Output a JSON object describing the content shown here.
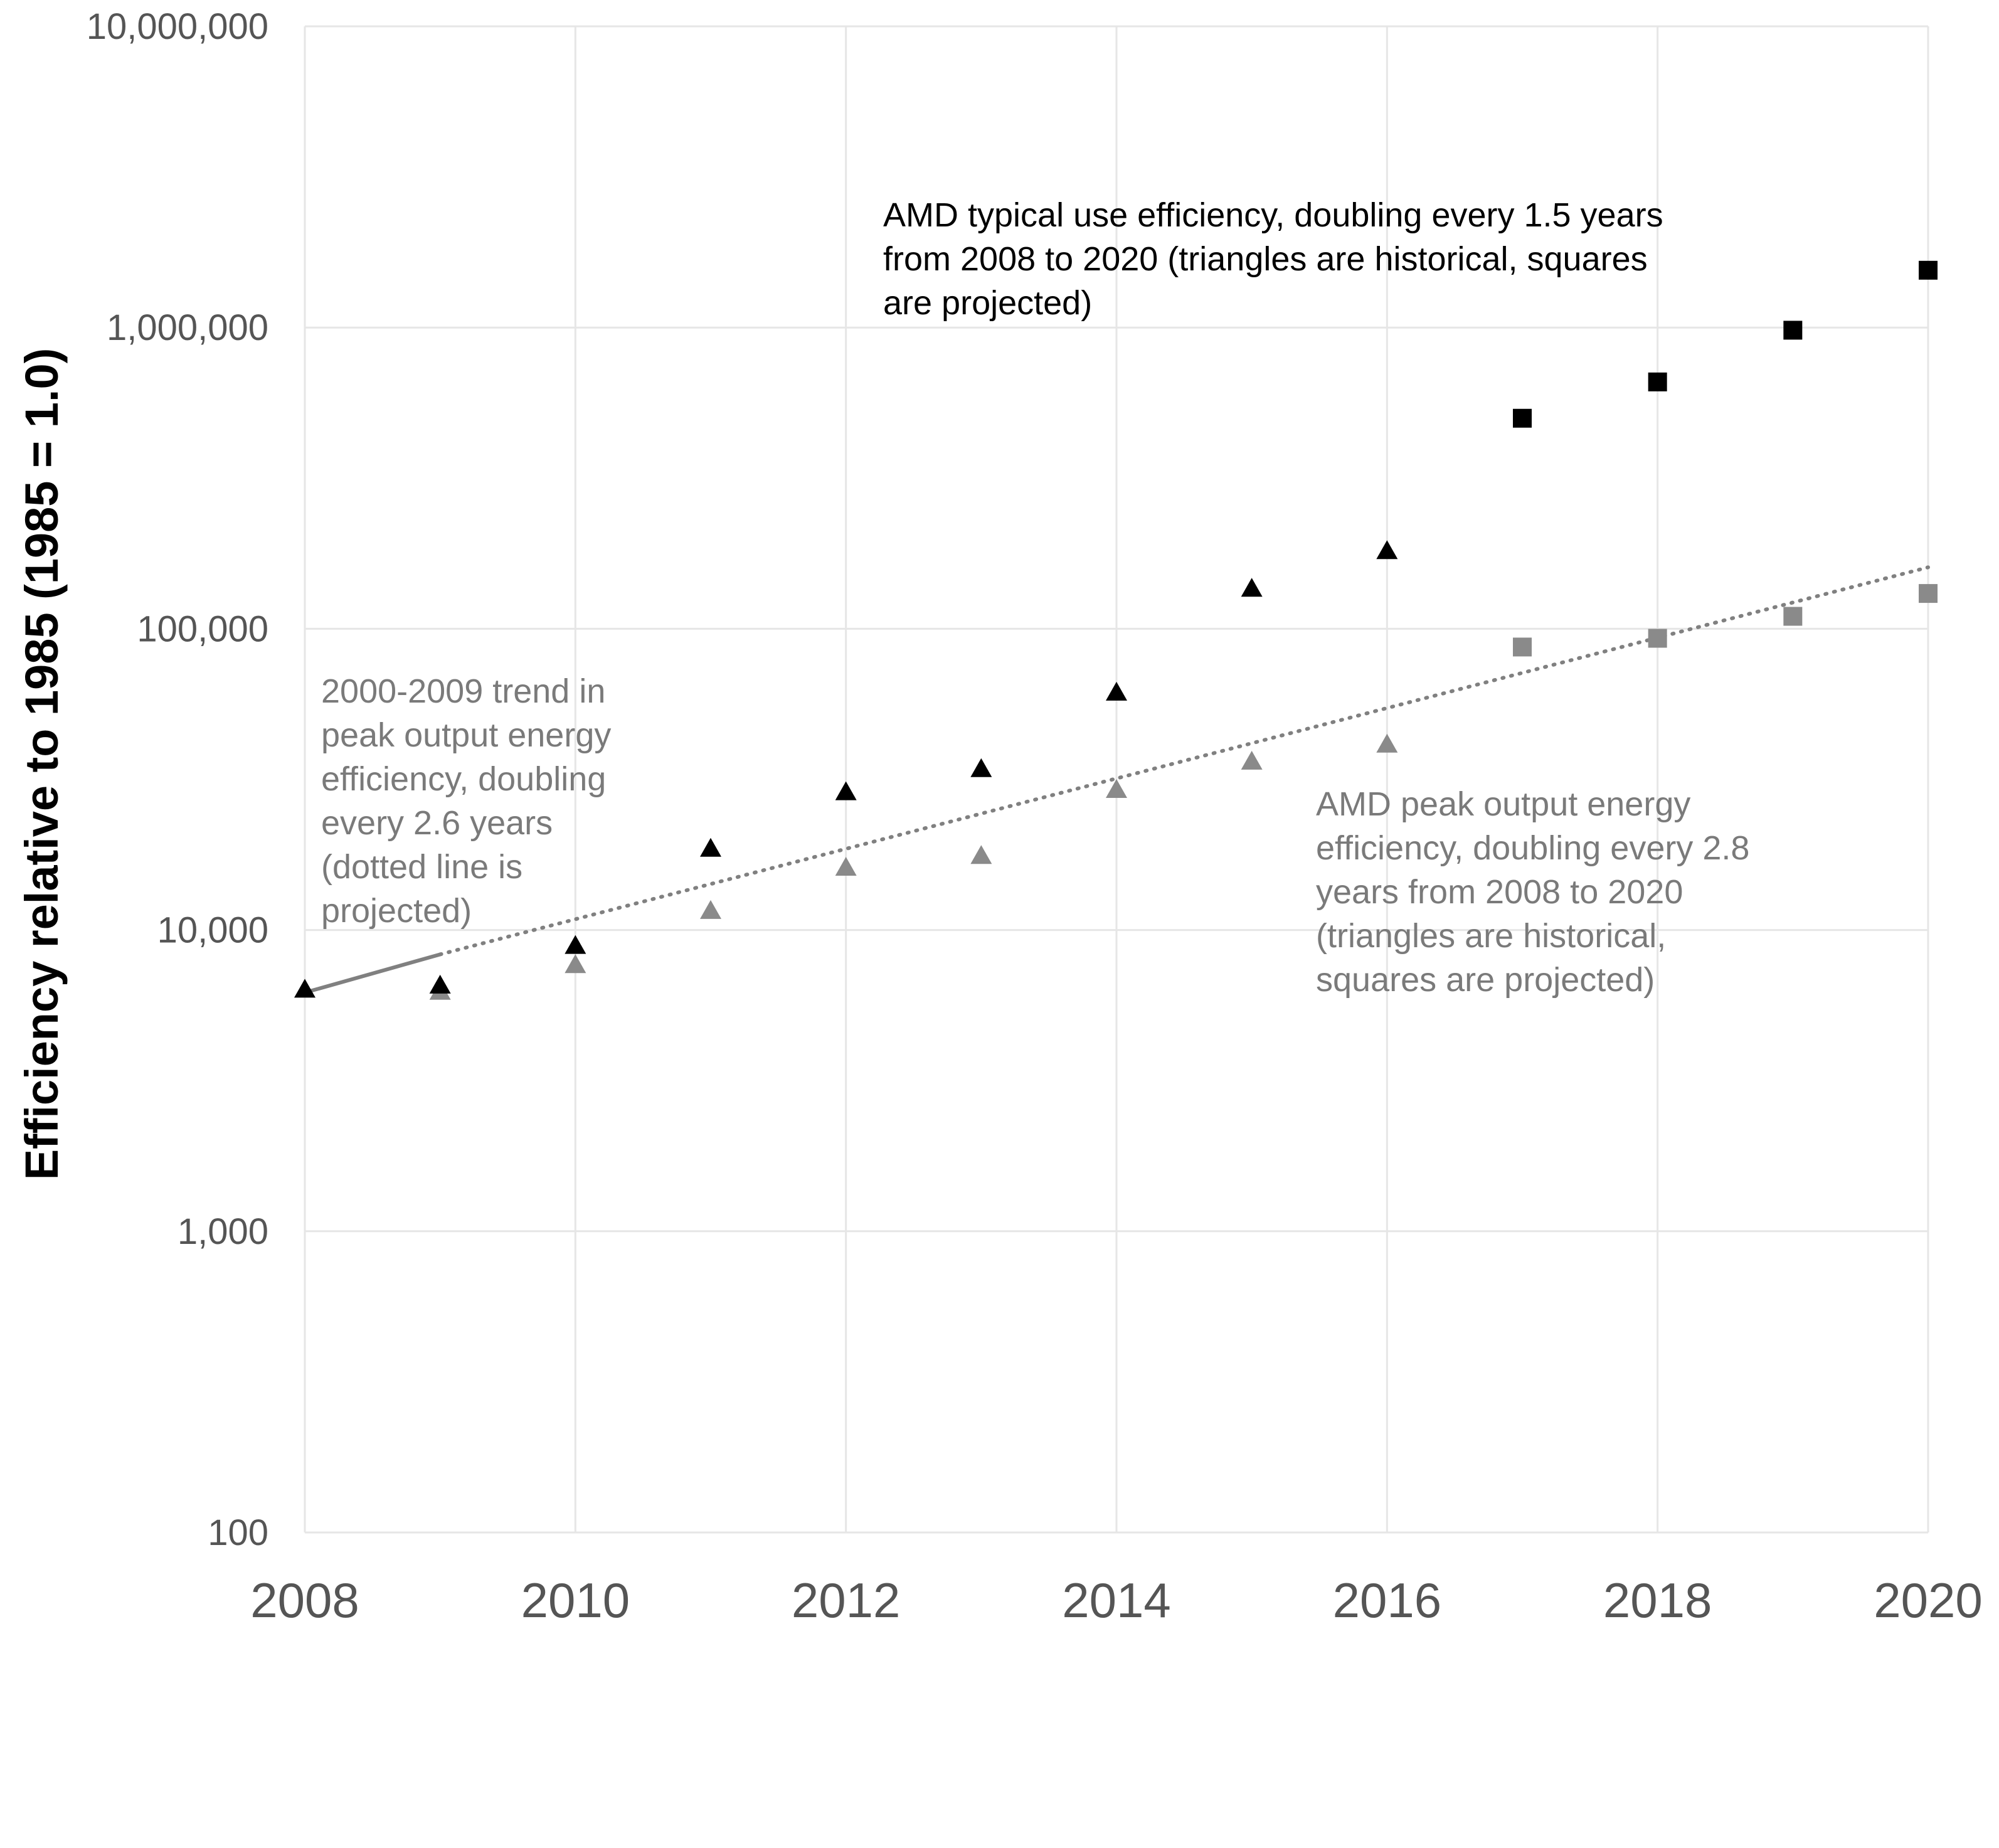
{
  "chart_data": {
    "type": "scatter",
    "title": "",
    "xlabel": "",
    "ylabel": "Efficiency relative to 1985 (1985 = 1.0)",
    "yscale": "log",
    "ylim": [
      100,
      10000000
    ],
    "xlim": [
      2008,
      2020
    ],
    "grid": true,
    "x_ticks": [
      "2008",
      "2010",
      "2012",
      "2014",
      "2016",
      "2018",
      "2020"
    ],
    "y_ticks": [
      "100",
      "1,000",
      "10,000",
      "100,000",
      "1,000,000",
      "10,000,000"
    ],
    "colors": {
      "typical": "#000000",
      "peak": "#8a8a8a",
      "trend": "#808080",
      "grid": "#e6e6e6",
      "tick_text": "#555555"
    },
    "series": [
      {
        "key": "typical_historical",
        "marker": "triangle",
        "color": "#000000",
        "x": [
          2008,
          2009,
          2010,
          2011,
          2012,
          2013,
          2014,
          2015,
          2016
        ],
        "values": [
          6300,
          6500,
          8800,
          18500,
          28500,
          34000,
          61000,
          135000,
          180000
        ]
      },
      {
        "key": "typical_projected",
        "marker": "square",
        "color": "#000000",
        "x": [
          2017,
          2018,
          2019,
          2020
        ],
        "values": [
          500000,
          660000,
          980000,
          1550000
        ]
      },
      {
        "key": "peak_historical",
        "marker": "triangle",
        "color": "#8a8a8a",
        "x": [
          2009,
          2010,
          2011,
          2012,
          2013,
          2014,
          2015,
          2016
        ],
        "values": [
          6200,
          7600,
          11500,
          16000,
          17500,
          29000,
          36000,
          41000
        ]
      },
      {
        "key": "peak_projected",
        "marker": "square",
        "color": "#8a8a8a",
        "x": [
          2017,
          2018,
          2019,
          2020
        ],
        "values": [
          87000,
          93000,
          110000,
          131000
        ]
      }
    ],
    "trend_solid": {
      "x": [
        2008,
        2009
      ],
      "values": [
        6200,
        8300
      ]
    },
    "trend_dotted": {
      "x": [
        2009,
        2020
      ],
      "values": [
        8300,
        160000
      ]
    },
    "annotations": {
      "typical": [
        "AMD typical use efficiency, doubling every 1.5 years",
        "from 2008 to 2020 (triangles are historical, squares",
        "are projected)"
      ],
      "trend": [
        "2000-2009 trend in",
        "peak output energy",
        "efficiency, doubling",
        "every 2.6 years",
        "(dotted line is",
        "projected)"
      ],
      "peak": [
        "AMD peak output energy",
        "efficiency, doubling every 2.8",
        "years from 2008 to 2020",
        "(triangles are historical,",
        "squares are projected)"
      ]
    }
  }
}
